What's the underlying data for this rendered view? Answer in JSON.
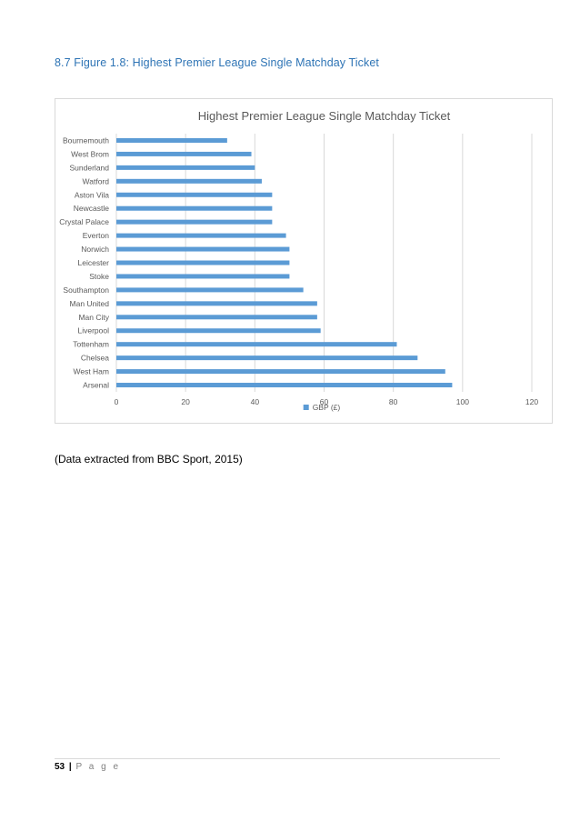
{
  "document": {
    "figure_heading": "8.7 Figure 1.8: Highest Premier League  Single Matchday Ticket",
    "source_note": "(Data extracted from BBC Sport, 2015)",
    "footer": {
      "page_number": "53",
      "separator": "|",
      "page_word": "P a g e"
    }
  },
  "colors": {
    "bar": "#5b9bd5",
    "grid": "#d9d9d9",
    "heading": "#2e74b5",
    "axis_text": "#595959"
  },
  "chart_data": {
    "type": "bar",
    "orientation": "horizontal",
    "title": "Highest Premier League Single Matchday Ticket",
    "categories": [
      "Bournemouth",
      "West Brom",
      "Sunderland",
      "Watford",
      "Aston Vila",
      "Newcastle",
      "Crystal Palace",
      "Everton",
      "Norwich",
      "Leicester",
      "Stoke",
      "Southampton",
      "Man United",
      "Man City",
      "Liverpool",
      "Tottenham",
      "Chelsea",
      "West Ham",
      "Arsenal"
    ],
    "series": [
      {
        "name": "GBP (£)",
        "values": [
          32,
          39,
          40,
          42,
          45,
          45,
          45,
          49,
          50,
          50,
          50,
          54,
          58,
          58,
          59,
          81,
          87,
          95,
          97
        ]
      }
    ],
    "xlim": [
      0,
      120
    ],
    "x_ticks": [
      0,
      20,
      40,
      60,
      80,
      100,
      120
    ],
    "grid": true,
    "legend_position": "bottom"
  }
}
